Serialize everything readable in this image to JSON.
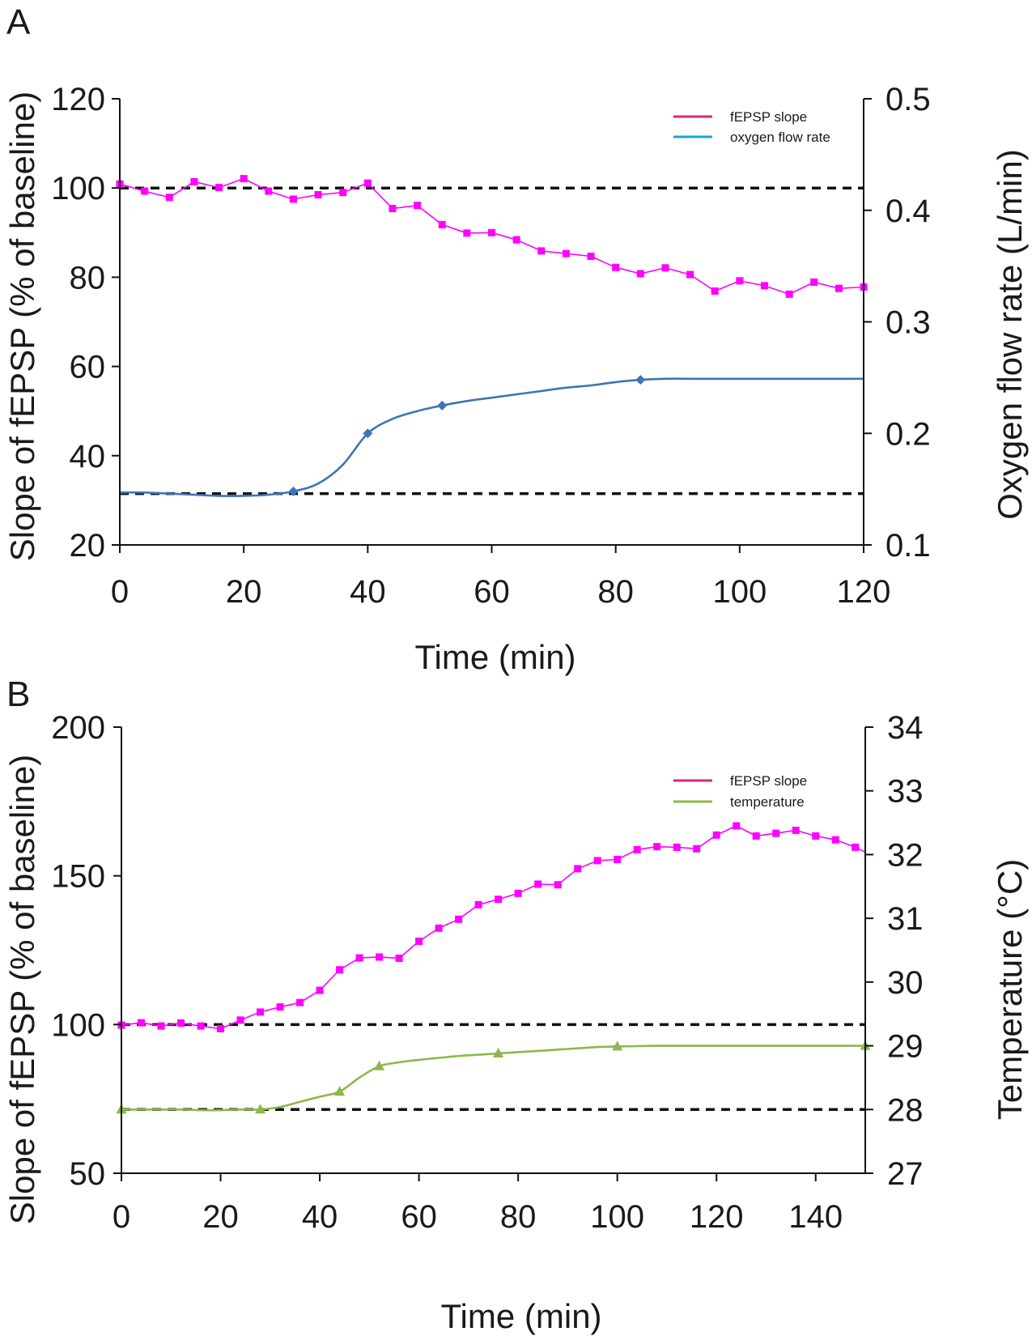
{
  "chart_data": [
    {
      "panel_label": "A",
      "type": "line",
      "xlabel": "Time (min)",
      "ylabel_left": "Slope of fEPSP (% of baseline)",
      "ylabel_right": "Oxygen flow rate (L/min)",
      "xlim": [
        0,
        120
      ],
      "ylim_left": [
        20,
        120
      ],
      "ylim_right": [
        0.1,
        0.5
      ],
      "x_ticks": [
        "0",
        "20",
        "40",
        "60",
        "80",
        "100",
        "120"
      ],
      "y_left_ticks": [
        "20",
        "40",
        "60",
        "80",
        "100",
        "120"
      ],
      "y_right_ticks": [
        "0.1",
        "0.2",
        "0.3",
        "0.4",
        "0.5"
      ],
      "legend": [
        "fEPSP slope",
        "oxygen flow rate"
      ],
      "legend_colors": [
        "#d6287d",
        "#1aa3d9"
      ],
      "reference_lines": [
        {
          "axis": "left",
          "value": 100
        },
        {
          "axis": "right",
          "value": 0.146
        }
      ],
      "series": [
        {
          "name": "fEPSP slope",
          "axis": "left",
          "color": "#ff00ff",
          "marker": "square",
          "x": [
            0,
            4,
            8,
            12,
            16,
            20,
            24,
            28,
            32,
            36,
            40,
            44,
            48,
            52,
            56,
            60,
            64,
            68,
            72,
            76,
            80,
            84,
            88,
            92,
            96,
            100,
            104,
            108,
            112,
            116,
            120
          ],
          "values": [
            100.9,
            99.3,
            97.9,
            101.4,
            100.1,
            102.1,
            99.3,
            97.5,
            98.5,
            99.0,
            101.1,
            95.4,
            96.1,
            91.8,
            89.9,
            90.0,
            88.4,
            85.9,
            85.3,
            84.7,
            82.2,
            80.8,
            82.1,
            80.6,
            76.9,
            79.2,
            78.1,
            76.2,
            78.9,
            77.5,
            77.8
          ]
        },
        {
          "name": "oxygen flow rate",
          "axis": "right",
          "color": "#3e74b8",
          "marker": "diamond",
          "x": [
            0,
            4,
            8,
            12,
            16,
            20,
            24,
            28,
            32,
            36,
            40,
            44,
            48,
            52,
            56,
            60,
            64,
            68,
            72,
            76,
            80,
            84,
            88,
            92,
            96,
            100,
            104,
            108,
            112,
            116,
            120
          ],
          "values": [
            0.147,
            0.147,
            0.146,
            0.145,
            0.144,
            0.144,
            0.145,
            0.148,
            0.155,
            0.172,
            0.2,
            0.213,
            0.22,
            0.225,
            0.229,
            0.232,
            0.235,
            0.238,
            0.241,
            0.243,
            0.246,
            0.248,
            0.249,
            0.249,
            0.249,
            0.249,
            0.249,
            0.249,
            0.249,
            0.249,
            0.249
          ],
          "marker_x": [
            28,
            40,
            52,
            84
          ]
        }
      ]
    },
    {
      "panel_label": "B",
      "type": "line",
      "xlabel": "Time (min)",
      "ylabel_left": "Slope of fEPSP (% of baseline)",
      "ylabel_right": "Temperature (°C)",
      "xlim": [
        0,
        150
      ],
      "ylim_left": [
        50,
        200
      ],
      "ylim_right": [
        27,
        34
      ],
      "x_ticks": [
        "0",
        "20",
        "40",
        "60",
        "80",
        "100",
        "120",
        "140"
      ],
      "y_left_ticks": [
        "50",
        "100",
        "150",
        "200"
      ],
      "y_right_ticks": [
        "27",
        "28",
        "29",
        "30",
        "31",
        "32",
        "33",
        "34"
      ],
      "legend": [
        "fEPSP slope",
        "temperature"
      ],
      "legend_colors": [
        "#d6287d",
        "#8cbd3f"
      ],
      "reference_lines": [
        {
          "axis": "left",
          "value": 100
        },
        {
          "axis": "right",
          "value": 28
        }
      ],
      "series": [
        {
          "name": "fEPSP slope",
          "axis": "left",
          "color": "#ff00ff",
          "marker": "square",
          "x": [
            0,
            4,
            8,
            12,
            16,
            20,
            24,
            28,
            32,
            36,
            40,
            44,
            48,
            52,
            56,
            60,
            64,
            68,
            72,
            76,
            80,
            84,
            88,
            92,
            96,
            100,
            104,
            108,
            112,
            116,
            120,
            124,
            128,
            132,
            136,
            140,
            144,
            148,
            150
          ],
          "values": [
            99.8,
            100.6,
            99.5,
            100.5,
            99.5,
            98.6,
            101.5,
            104.2,
            105.9,
            107.4,
            111.5,
            118.4,
            122.4,
            122.7,
            122.3,
            128.0,
            132.4,
            135.4,
            140.3,
            142.1,
            144.1,
            147.2,
            147.0,
            152.4,
            155.1,
            155.5,
            158.8,
            159.8,
            159.6,
            159.1,
            163.7,
            166.8,
            163.4,
            164.3,
            165.3,
            163.4,
            162.1,
            159.6,
            158.0
          ],
          "marker_count": 38
        },
        {
          "name": "temperature",
          "axis": "right",
          "color": "#8cb84a",
          "marker": "triangle",
          "x": [
            0,
            4,
            8,
            12,
            16,
            20,
            24,
            28,
            32,
            36,
            40,
            44,
            48,
            52,
            56,
            60,
            64,
            68,
            72,
            76,
            80,
            84,
            88,
            92,
            96,
            100,
            104,
            108,
            112,
            116,
            120,
            124,
            128,
            132,
            136,
            140,
            144,
            148,
            150
          ],
          "values": [
            28.0,
            28.0,
            28.0,
            28.0,
            27.99,
            27.99,
            28.0,
            28.0,
            28.04,
            28.12,
            28.2,
            28.28,
            28.5,
            28.68,
            28.74,
            28.78,
            28.81,
            28.84,
            28.86,
            28.88,
            28.9,
            28.92,
            28.94,
            28.96,
            28.98,
            28.99,
            28.995,
            29.0,
            29.0,
            29.0,
            29.0,
            29.0,
            29.0,
            29.0,
            29.0,
            29.0,
            29.0,
            29.0,
            29.0
          ],
          "marker_x": [
            0,
            28,
            44,
            52,
            76,
            100,
            150
          ]
        }
      ]
    }
  ]
}
